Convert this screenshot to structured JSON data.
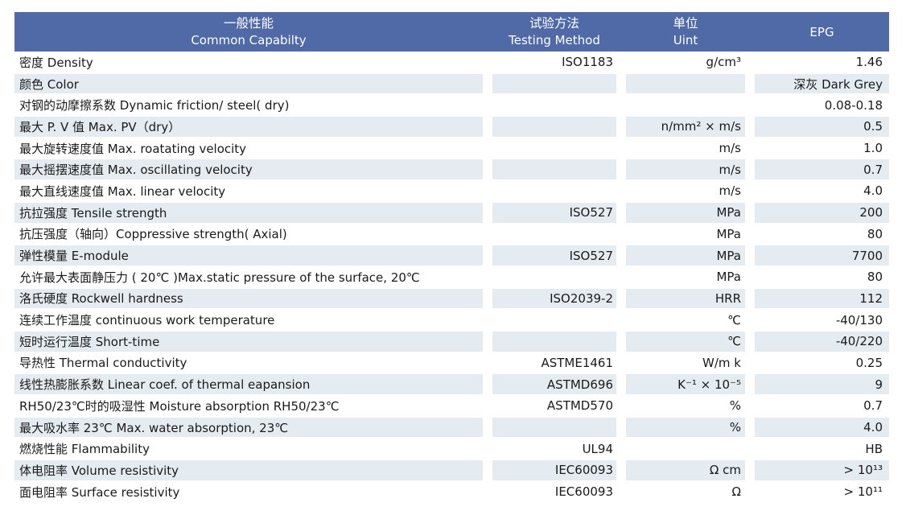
{
  "colors": {
    "header_bg": "#5069a7",
    "stripe_bg": "#e4ebf1",
    "header_text": "#ffffff",
    "body_text": "#1a1a1a"
  },
  "table": {
    "header": {
      "columns": [
        {
          "zh": "一般性能",
          "en": "Common Capabilty"
        },
        {
          "zh": "试验方法",
          "en": "Testing Method"
        },
        {
          "zh": "单位",
          "en": "Uint"
        },
        {
          "zh": "",
          "en": "EPG"
        }
      ]
    },
    "rows": [
      {
        "label": "密度 Density",
        "method": "ISO1183",
        "unit": "g/cm³",
        "value": "1.46"
      },
      {
        "label": "颜色 Color",
        "method": "",
        "unit": "",
        "value": "深灰 Dark Grey"
      },
      {
        "label": "对钢的动摩擦系数 Dynamic friction/ steel( dry)",
        "method": "",
        "unit": "",
        "value": "0.08-0.18"
      },
      {
        "label": "最大 P. V 值 Max. PV（dry）",
        "method": "",
        "unit": "n/mm² × m/s",
        "value": "0.5"
      },
      {
        "label": "最大旋转速度值 Max. roatating velocity",
        "method": "",
        "unit": "m/s",
        "value": "1.0"
      },
      {
        "label": "最大摇摆速度值 Max. oscillating velocity",
        "method": "",
        "unit": "m/s",
        "value": "0.7"
      },
      {
        "label": "最大直线速度值 Max. linear velocity",
        "method": "",
        "unit": "m/s",
        "value": "4.0"
      },
      {
        "label": "抗拉强度 Tensile strength",
        "method": "ISO527",
        "unit": "MPa",
        "value": "200"
      },
      {
        "label": "抗压强度（轴向）Coppressive strength( Axial)",
        "method": "",
        "unit": "MPa",
        "value": "80"
      },
      {
        "label": "弹性模量 E-module",
        "method": "ISO527",
        "unit": "MPa",
        "value": "7700"
      },
      {
        "label": "允许最大表面静压力 ( 20℃ )Max.static pressure of the surface, 20℃",
        "method": "",
        "unit": "MPa",
        "value": "80"
      },
      {
        "label": "洛氏硬度 Rockwell hardness",
        "method": "ISO2039-2",
        "unit": "HRR",
        "value": "112"
      },
      {
        "label": "连续工作温度 continuous work temperature",
        "method": "",
        "unit": "℃",
        "value": "-40/130"
      },
      {
        "label": "短时运行温度 Short-time",
        "method": "",
        "unit": "℃",
        "value": "-40/220"
      },
      {
        "label": "导热性 Thermal conductivity",
        "method": "ASTME1461",
        "unit": "W/m k",
        "value": "0.25"
      },
      {
        "label": "线性热膨胀系数 Linear coef. of thermal eapansion",
        "method": "ASTMD696",
        "unit": "K⁻¹ × 10⁻⁵",
        "value": "9"
      },
      {
        "label": "RH50/23℃时的吸湿性 Moisture absorption RH50/23℃",
        "method": "ASTMD570",
        "unit": "%",
        "value": "0.7"
      },
      {
        "label": "最大吸水率 23℃ Max. water absorption, 23℃",
        "method": "",
        "unit": "%",
        "value": "4.0"
      },
      {
        "label": "燃烧性能 Flammability",
        "method": "UL94",
        "unit": "",
        "value": "HB"
      },
      {
        "label": "体电阻率 Volume resistivity",
        "method": "IEC60093",
        "unit": "Ω cm",
        "value": "> 10¹³"
      },
      {
        "label": "面电阻率 Surface resistivity",
        "method": "IEC60093",
        "unit": "Ω",
        "value": "> 10¹¹"
      }
    ]
  }
}
